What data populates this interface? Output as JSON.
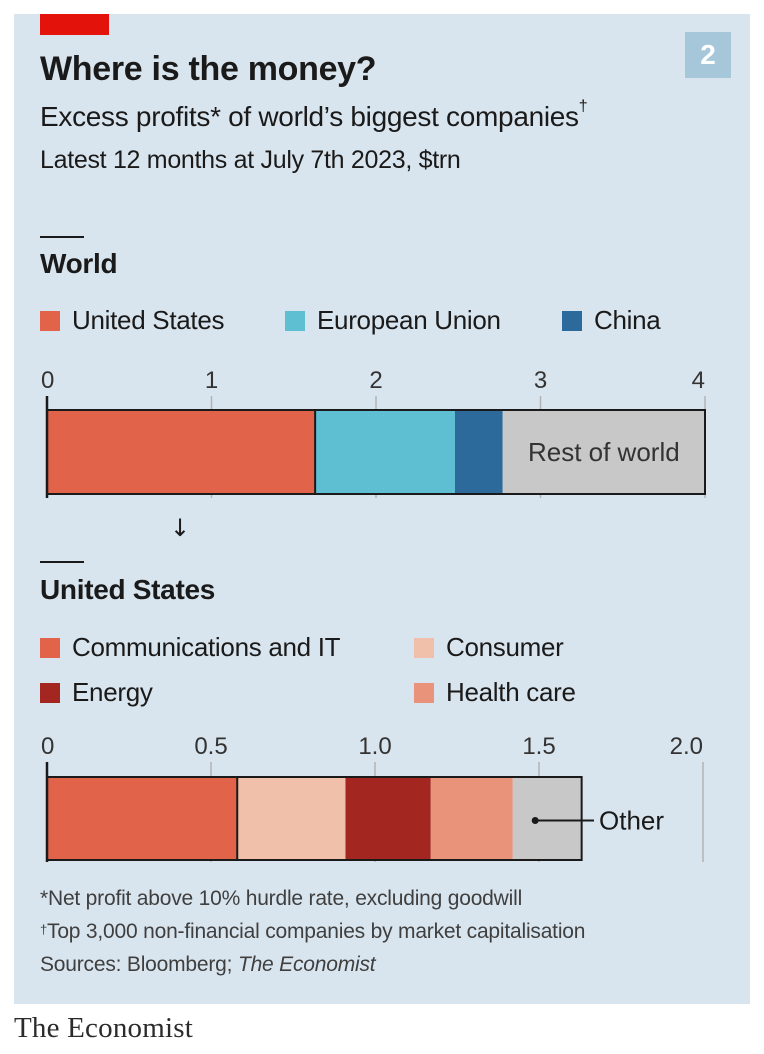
{
  "header": {
    "title": "Where is the money?",
    "subtitle_text": "Excess profits* of world’s biggest companies",
    "subtitle_mark": "†",
    "subtitle2": "Latest 12 months at July 7th 2023, $trn",
    "chart_number": "2"
  },
  "colors": {
    "background": "#d9e5ee",
    "brand_red": "#e3120b",
    "united_states": "#e0634a",
    "european_union": "#5ebfd2",
    "china": "#2b6a9a",
    "rest_of_world": "#c8c8c8",
    "communications_it": "#e0634a",
    "consumer": "#f0c0aa",
    "energy": "#a32620",
    "health_care": "#e8937a",
    "other": "#c8c8c8"
  },
  "chart_data": [
    {
      "type": "bar",
      "orientation": "horizontal-stacked",
      "title": "World",
      "xlim": [
        0,
        4
      ],
      "ticks": [
        "0",
        "1",
        "2",
        "3",
        "4"
      ],
      "tick_values": [
        0,
        1,
        2,
        3,
        4
      ],
      "legend": [
        "United States",
        "European Union",
        "China"
      ],
      "series": [
        {
          "name": "United States",
          "value": 1.63,
          "color": "#e0634a"
        },
        {
          "name": "European Union",
          "value": 0.85,
          "color": "#5ebfd2"
        },
        {
          "name": "China",
          "value": 0.29,
          "color": "#2b6a9a"
        },
        {
          "name": "Rest of world",
          "value": 1.23,
          "color": "#c8c8c8"
        }
      ],
      "annotations": [
        "Rest of world"
      ]
    },
    {
      "type": "bar",
      "orientation": "horizontal-stacked",
      "title": "United States",
      "xlim": [
        0,
        2.0
      ],
      "ticks": [
        "0",
        "0.5",
        "1.0",
        "1.5",
        "2.0"
      ],
      "tick_values": [
        0,
        0.5,
        1.0,
        1.5,
        2.0
      ],
      "legend": [
        "Communications and IT",
        "Consumer",
        "Energy",
        "Health care"
      ],
      "series": [
        {
          "name": "Communications and IT",
          "value": 0.58,
          "color": "#e0634a"
        },
        {
          "name": "Consumer",
          "value": 0.33,
          "color": "#f0c0aa"
        },
        {
          "name": "Energy",
          "value": 0.26,
          "color": "#a32620"
        },
        {
          "name": "Health care",
          "value": 0.25,
          "color": "#e8937a"
        },
        {
          "name": "Other",
          "value": 0.21,
          "color": "#c8c8c8"
        }
      ],
      "annotations": [
        "Other"
      ]
    }
  ],
  "footnotes": {
    "note1": "*Net profit above 10% hurdle rate, excluding goodwill",
    "note2_mark": "†",
    "note2": "Top 3,000 non-financial companies by market capitalisation",
    "sources_prefix": "Sources: Bloomberg; ",
    "sources_italic": "The Economist"
  },
  "brand": "The Economist",
  "drilldown_arrow": "↓"
}
